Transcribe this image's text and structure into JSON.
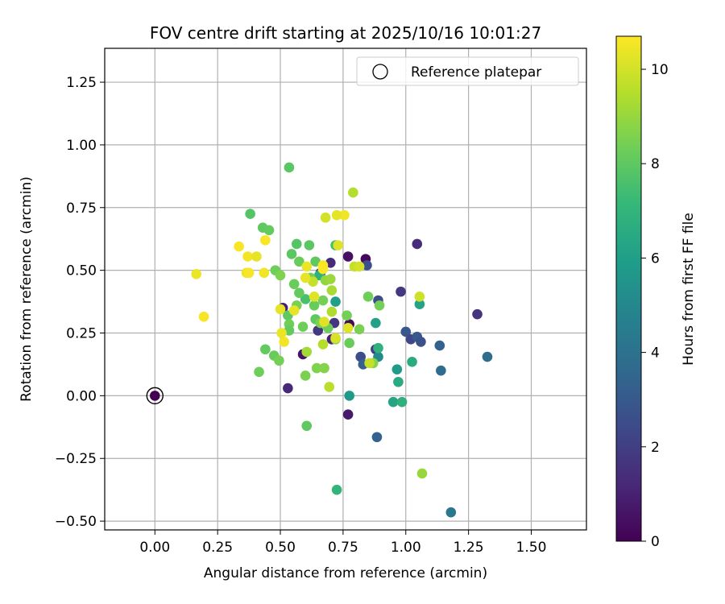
{
  "chart_data": {
    "type": "scatter",
    "title": "FOV centre drift starting at 2025/10/16 10:01:27",
    "xlabel": "Angular distance from reference (arcmin)",
    "ylabel": "Rotation from reference (arcmin)",
    "xlim": [
      -0.2,
      1.72
    ],
    "ylim": [
      -0.535,
      1.385
    ],
    "xticks": [
      0.0,
      0.25,
      0.5,
      0.75,
      1.0,
      1.25,
      1.5
    ],
    "xtick_labels": [
      "0.00",
      "0.25",
      "0.50",
      "0.75",
      "1.00",
      "1.25",
      "1.50"
    ],
    "yticks": [
      -0.5,
      -0.25,
      0.0,
      0.25,
      0.5,
      0.75,
      1.0,
      1.25
    ],
    "ytick_labels": [
      "−0.50",
      "−0.25",
      "0.00",
      "0.25",
      "0.50",
      "0.75",
      "1.00",
      "1.25"
    ],
    "grid": true,
    "legend": {
      "position": "top-right",
      "entries": [
        "Reference platepar"
      ]
    },
    "reference": {
      "x": 0.0,
      "y": 0.0,
      "label": "Reference platepar"
    },
    "colorbar": {
      "label": "Hours from first FF file",
      "colormap": "viridis",
      "range": [
        0,
        10.7
      ],
      "ticks": [
        0,
        2,
        4,
        6,
        8,
        10
      ],
      "tick_labels": [
        "0",
        "2",
        "4",
        "6",
        "8",
        "10"
      ]
    },
    "colormap_stops": [
      "#440154",
      "#482878",
      "#3e4989",
      "#31688e",
      "#26828e",
      "#1f9e89",
      "#35b779",
      "#6ece58",
      "#b5de2b",
      "#fde725"
    ],
    "points": [
      [
        0.0,
        0.0,
        0.0
      ],
      [
        0.53,
        0.03,
        1.2
      ],
      [
        0.59,
        0.165,
        0.6
      ],
      [
        0.77,
        -0.075,
        0.8
      ],
      [
        0.84,
        0.545,
        0.2
      ],
      [
        0.77,
        0.555,
        0.5
      ],
      [
        0.775,
        0.285,
        0.3
      ],
      [
        0.51,
        0.35,
        0.9
      ],
      [
        0.7,
        0.53,
        1.3
      ],
      [
        0.705,
        0.225,
        1.0
      ],
      [
        0.715,
        0.29,
        1.7
      ],
      [
        0.65,
        0.26,
        1.8
      ],
      [
        0.66,
        0.49,
        2.7
      ],
      [
        1.045,
        0.605,
        1.4
      ],
      [
        1.285,
        0.325,
        1.6
      ],
      [
        0.98,
        0.415,
        1.8
      ],
      [
        0.845,
        0.52,
        2.6
      ],
      [
        0.89,
        0.38,
        2.5
      ],
      [
        1.0,
        0.255,
        2.9
      ],
      [
        1.02,
        0.225,
        2.3
      ],
      [
        1.045,
        0.235,
        3.0
      ],
      [
        1.06,
        0.215,
        2.7
      ],
      [
        0.88,
        0.185,
        2.0
      ],
      [
        0.82,
        0.155,
        2.5
      ],
      [
        0.83,
        0.125,
        3.3
      ],
      [
        0.89,
        0.155,
        5.0
      ],
      [
        0.885,
        -0.165,
        3.3
      ],
      [
        1.135,
        0.2,
        3.3
      ],
      [
        1.14,
        0.1,
        3.8
      ],
      [
        1.325,
        0.155,
        3.8
      ],
      [
        1.18,
        -0.465,
        4.3
      ],
      [
        0.775,
        0.0,
        5.7
      ],
      [
        0.72,
        0.375,
        6.0
      ],
      [
        0.88,
        0.29,
        6.1
      ],
      [
        0.89,
        0.19,
        6.8
      ],
      [
        0.965,
        0.105,
        5.8
      ],
      [
        0.97,
        0.055,
        6.5
      ],
      [
        0.95,
        -0.025,
        6.3
      ],
      [
        0.985,
        -0.025,
        6.8
      ],
      [
        1.055,
        0.365,
        6.2
      ],
      [
        1.025,
        0.135,
        6.6
      ],
      [
        0.725,
        -0.375,
        7.0
      ],
      [
        0.655,
        0.48,
        6.9
      ],
      [
        0.6,
        0.385,
        7.6
      ],
      [
        0.72,
        0.6,
        7.5
      ],
      [
        0.565,
        0.605,
        7.8
      ],
      [
        0.615,
        0.6,
        7.9
      ],
      [
        0.535,
        0.91,
        7.9
      ],
      [
        0.38,
        0.725,
        7.8
      ],
      [
        0.43,
        0.67,
        8.0
      ],
      [
        0.455,
        0.66,
        8.1
      ],
      [
        0.545,
        0.565,
        7.9
      ],
      [
        0.575,
        0.535,
        8.2
      ],
      [
        0.64,
        0.535,
        8.0
      ],
      [
        0.48,
        0.5,
        8.3
      ],
      [
        0.5,
        0.48,
        8.6
      ],
      [
        0.555,
        0.445,
        8.2
      ],
      [
        0.565,
        0.36,
        8.5
      ],
      [
        0.575,
        0.41,
        8.1
      ],
      [
        0.62,
        0.47,
        8.4
      ],
      [
        0.635,
        0.36,
        8.2
      ],
      [
        0.67,
        0.38,
        8.4
      ],
      [
        0.53,
        0.32,
        8.0
      ],
      [
        0.535,
        0.285,
        8.3
      ],
      [
        0.535,
        0.26,
        8.1
      ],
      [
        0.59,
        0.275,
        8.3
      ],
      [
        0.64,
        0.305,
        8.0
      ],
      [
        0.66,
        0.29,
        8.6
      ],
      [
        0.69,
        0.27,
        8.3
      ],
      [
        0.72,
        0.225,
        8.7
      ],
      [
        0.765,
        0.32,
        8.4
      ],
      [
        0.775,
        0.21,
        8.2
      ],
      [
        0.815,
        0.265,
        8.5
      ],
      [
        0.85,
        0.395,
        8.3
      ],
      [
        0.87,
        0.13,
        8.7
      ],
      [
        0.895,
        0.36,
        8.4
      ],
      [
        0.44,
        0.185,
        8.1
      ],
      [
        0.475,
        0.16,
        8.2
      ],
      [
        0.495,
        0.14,
        8.4
      ],
      [
        0.415,
        0.095,
        8.3
      ],
      [
        0.6,
        0.08,
        8.5
      ],
      [
        0.645,
        0.11,
        8.6
      ],
      [
        0.675,
        0.11,
        8.7
      ],
      [
        0.68,
        0.46,
        8.9
      ],
      [
        0.7,
        0.465,
        9.1
      ],
      [
        0.705,
        0.42,
        9.3
      ],
      [
        0.605,
        0.175,
        9.2
      ],
      [
        0.605,
        -0.12,
        8.0
      ],
      [
        0.67,
        0.205,
        9.5
      ],
      [
        0.705,
        0.335,
        9.4
      ],
      [
        0.695,
        0.035,
        9.6
      ],
      [
        0.63,
        0.455,
        9.8
      ],
      [
        0.79,
        0.81,
        9.5
      ],
      [
        0.795,
        0.515,
        9.8
      ],
      [
        0.815,
        0.515,
        10.0
      ],
      [
        0.855,
        0.13,
        9.8
      ],
      [
        1.055,
        0.395,
        9.9
      ],
      [
        1.065,
        -0.31,
        9.0
      ],
      [
        0.755,
        0.72,
        10.5
      ],
      [
        0.725,
        0.72,
        10.3
      ],
      [
        0.68,
        0.71,
        10.0
      ],
      [
        0.73,
        0.6,
        10.2
      ],
      [
        0.335,
        0.595,
        10.6
      ],
      [
        0.37,
        0.555,
        10.5
      ],
      [
        0.405,
        0.555,
        10.3
      ],
      [
        0.44,
        0.62,
        10.6
      ],
      [
        0.365,
        0.49,
        10.4
      ],
      [
        0.375,
        0.49,
        10.6
      ],
      [
        0.435,
        0.49,
        10.5
      ],
      [
        0.5,
        0.345,
        10.3
      ],
      [
        0.505,
        0.25,
        10.4
      ],
      [
        0.515,
        0.215,
        10.5
      ],
      [
        0.6,
        0.47,
        10.3
      ],
      [
        0.605,
        0.515,
        10.4
      ],
      [
        0.635,
        0.395,
        10.2
      ],
      [
        0.67,
        0.52,
        10.6
      ],
      [
        0.67,
        0.505,
        10.7
      ],
      [
        0.555,
        0.34,
        10.3
      ],
      [
        0.675,
        0.295,
        10.2
      ],
      [
        0.72,
        0.23,
        10.1
      ],
      [
        0.77,
        0.27,
        10.2
      ],
      [
        0.165,
        0.485,
        10.4
      ],
      [
        0.195,
        0.315,
        10.6
      ]
    ]
  }
}
